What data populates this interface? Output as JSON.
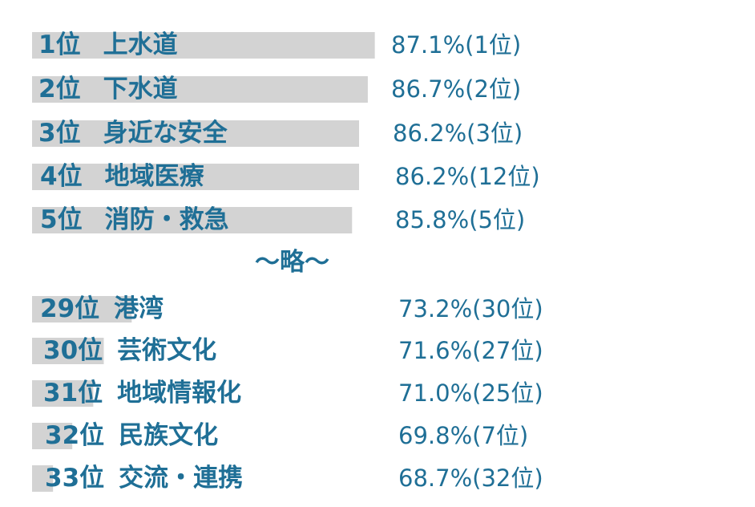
{
  "chart_data": {
    "type": "bar",
    "rows": [
      {
        "rank_label": "1位",
        "name": "上水道",
        "value": 87.1,
        "value_label": "87.1%(1位)"
      },
      {
        "rank_label": "2位",
        "name": "下水道",
        "value": 86.7,
        "value_label": "86.7%(2位)"
      },
      {
        "rank_label": "3位",
        "name": "身近な安全",
        "value": 86.2,
        "value_label": "86.2%(3位)"
      },
      {
        "rank_label": "4位",
        "name": "地域医療",
        "value": 86.2,
        "value_label": "86.2%(12位)"
      },
      {
        "rank_label": "5位",
        "name": "消防・救急",
        "value": 85.8,
        "value_label": "85.8%(5位)"
      },
      {
        "rank_label": "29位",
        "name": "港湾",
        "value": 73.2,
        "value_label": "73.2%(30位)"
      },
      {
        "rank_label": "30位",
        "name": "芸術文化",
        "value": 71.6,
        "value_label": "71.6%(27位)"
      },
      {
        "rank_label": "31位",
        "name": "地域情報化",
        "value": 71.0,
        "value_label": "71.0%(25位)"
      },
      {
        "rank_label": "32位",
        "name": "民族文化",
        "value": 69.8,
        "value_label": "69.8%(7位)"
      },
      {
        "rank_label": "33位",
        "name": "交流・連携",
        "value": 68.7,
        "value_label": "68.7%(32位)"
      }
    ],
    "separator_label": "～略～",
    "colors": {
      "text": "#1f6f96",
      "bar": "#d3d3d3"
    },
    "value_axis_range": [
      67.5,
      87.3
    ],
    "grid": false
  }
}
